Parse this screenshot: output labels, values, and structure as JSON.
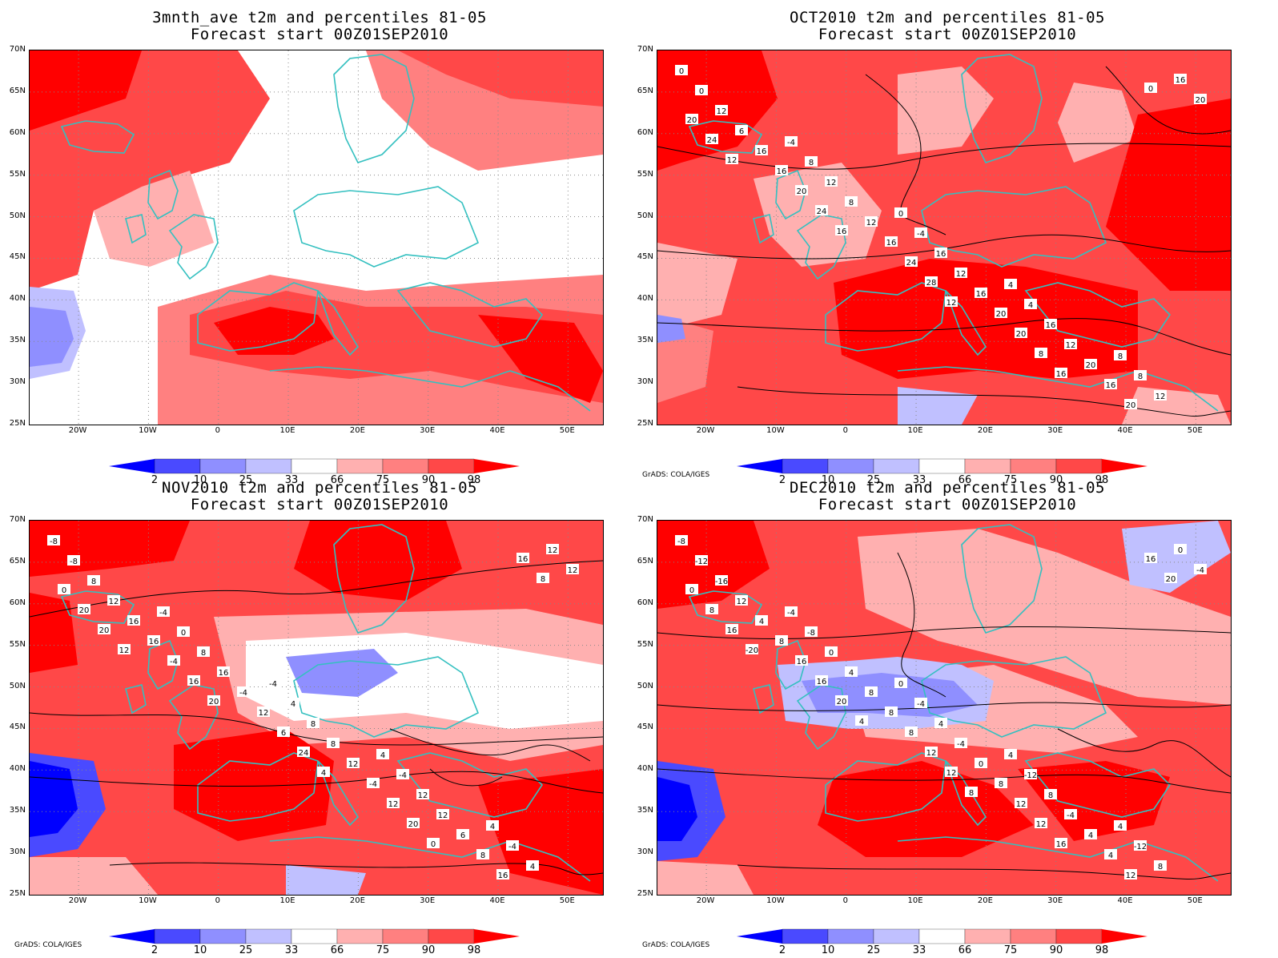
{
  "panels": [
    {
      "title1": "3mnth_ave t2m and percentiles 81-05",
      "title2": "Forecast start 00Z01SEP2010",
      "credit": "",
      "contours": []
    },
    {
      "title1": "OCT2010 t2m and percentiles 81-05",
      "title2": "Forecast start 00Z01SEP2010",
      "credit": "GrADS: COLA/IGES",
      "contours": [
        "0",
        "-4",
        "0",
        "4",
        "8",
        "0",
        "8",
        "-4",
        "4",
        "8",
        "12",
        "12",
        "16",
        "16",
        "12",
        "6",
        "8",
        "12",
        "12",
        "16",
        "16",
        "12",
        "16",
        "20",
        "20",
        "16",
        "16",
        "20",
        "16",
        "20",
        "20",
        "24",
        "20",
        "20",
        "24",
        "24",
        "28",
        "8",
        "0",
        "12",
        "16",
        "12",
        "16"
      ]
    },
    {
      "title1": "NOV2010 t2m and percentiles 81-05",
      "title2": "Forecast start 00Z01SEP2010",
      "credit": "GrADS: COLA/IGES",
      "contours": [
        "-8",
        "-4",
        "-4",
        "4",
        "4",
        "-8",
        "0",
        "4",
        "-4",
        "-4",
        "8",
        "8",
        "8",
        "12",
        "4",
        "12",
        "16",
        "8",
        "12",
        "12",
        "16",
        "-4",
        "12",
        "6",
        "12",
        "16",
        "12",
        "-4",
        "8",
        "0",
        "-4",
        "6",
        "12",
        "16",
        "20",
        "16",
        "24",
        "20",
        "16",
        "20",
        "20",
        "4",
        "0",
        "8",
        "12"
      ]
    },
    {
      "title1": "DEC2010 t2m and percentiles 81-05",
      "title2": "Forecast start 00Z01SEP2010",
      "credit": "GrADS: COLA/IGES",
      "contours": [
        "-8",
        "-4",
        "0",
        "4",
        "4",
        "-12",
        "-8",
        "-4",
        "-12",
        "-12",
        "-16",
        "0",
        "4",
        "8",
        "8",
        "12",
        "4",
        "-4",
        "-4",
        "0",
        "4",
        "8",
        "0",
        "4",
        "-4",
        "8",
        "8",
        "8",
        "4",
        "0",
        "16",
        "8",
        "12",
        "12",
        "8",
        "16",
        "12",
        "12",
        "16",
        "16",
        "20",
        "12",
        "16",
        "20",
        "-20",
        "4",
        "8"
      ]
    }
  ],
  "lat_labels": [
    "70N",
    "65N",
    "60N",
    "55N",
    "50N",
    "45N",
    "40N",
    "35N",
    "30N",
    "25N"
  ],
  "lon_labels": [
    "20W",
    "10W",
    "0",
    "10E",
    "20E",
    "30E",
    "40E",
    "50E"
  ],
  "colorbar": {
    "labels": [
      "2",
      "10",
      "25",
      "33",
      "66",
      "75",
      "90",
      "98"
    ],
    "colors": [
      "#0000ff",
      "#4a4aff",
      "#8f8fff",
      "#c0c0ff",
      "#ffffff",
      "#ffb0b0",
      "#ff8080",
      "#ff4848",
      "#ff0000"
    ]
  },
  "colors": {
    "coast": "#34c0c0",
    "contour": "#000000",
    "grid": "#888888"
  }
}
